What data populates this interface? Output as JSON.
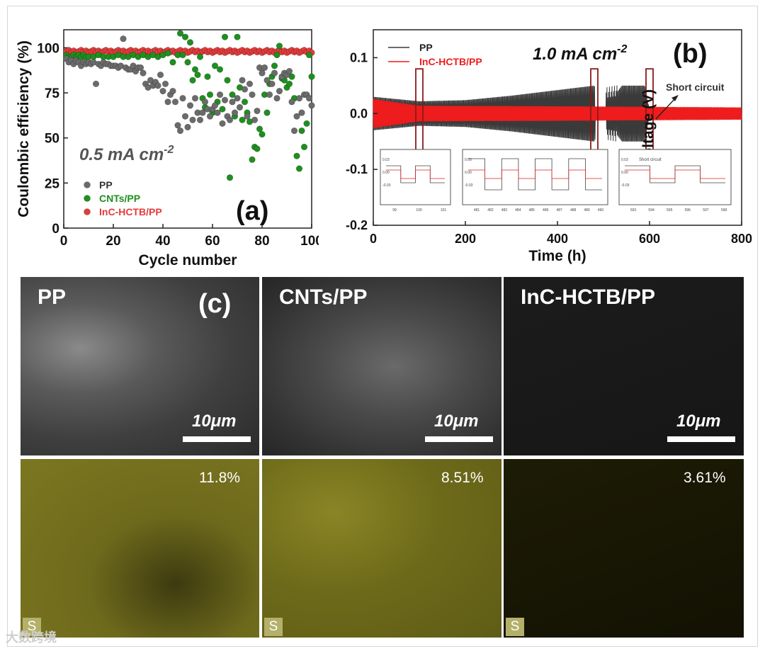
{
  "chart_data": [
    {
      "type": "scatter",
      "panel_label": "(a)",
      "annotation": "0.5 mA cm",
      "annotation_sup": "-2",
      "xlabel": "Cycle number",
      "ylabel": "Coulombic efficiency (%)",
      "xlim": [
        0,
        100
      ],
      "ylim": [
        0,
        110
      ],
      "xticks": [
        "0",
        "20",
        "40",
        "60",
        "80",
        "100"
      ],
      "yticks": [
        "0",
        "25",
        "50",
        "75",
        "100"
      ],
      "legend_position": "bottom-left",
      "series": [
        {
          "name": "PP",
          "color": "#6b6b6b",
          "points": [
            [
              1,
              94
            ],
            [
              2,
              92
            ],
            [
              3,
              93
            ],
            [
              4,
              91
            ],
            [
              5,
              93
            ],
            [
              6,
              92
            ],
            [
              7,
              90
            ],
            [
              8,
              92
            ],
            [
              9,
              91
            ],
            [
              10,
              92
            ],
            [
              11,
              91
            ],
            [
              12,
              92
            ],
            [
              13,
              80
            ],
            [
              14,
              91
            ],
            [
              15,
              90
            ],
            [
              16,
              92
            ],
            [
              17,
              91
            ],
            [
              18,
              91
            ],
            [
              19,
              90
            ],
            [
              20,
              90
            ],
            [
              21,
              90
            ],
            [
              22,
              89
            ],
            [
              23,
              90
            ],
            [
              24,
              105
            ],
            [
              25,
              89
            ],
            [
              26,
              88
            ],
            [
              27,
              88
            ],
            [
              28,
              90
            ],
            [
              29,
              87
            ],
            [
              30,
              89
            ],
            [
              31,
              89
            ],
            [
              32,
              86
            ],
            [
              33,
              80
            ],
            [
              34,
              78
            ],
            [
              35,
              82
            ],
            [
              36,
              79
            ],
            [
              37,
              81
            ],
            [
              38,
              79
            ],
            [
              39,
              85
            ],
            [
              40,
              76
            ],
            [
              41,
              80
            ],
            [
              42,
              70
            ],
            [
              43,
              74
            ],
            [
              44,
              76
            ],
            [
              45,
              70
            ],
            [
              46,
              57
            ],
            [
              47,
              54
            ],
            [
              48,
              72
            ],
            [
              49,
              62
            ],
            [
              50,
              56
            ],
            [
              51,
              68
            ],
            [
              52,
              60
            ],
            [
              53,
              72
            ],
            [
              54,
              64
            ],
            [
              55,
              60
            ],
            [
              56,
              64
            ],
            [
              57,
              70
            ],
            [
              58,
              66
            ],
            [
              59,
              62
            ],
            [
              60,
              66
            ],
            [
              61,
              68
            ],
            [
              62,
              64
            ],
            [
              63,
              74
            ],
            [
              64,
              58
            ],
            [
              65,
              71
            ],
            [
              66,
              62
            ],
            [
              67,
              60
            ],
            [
              68,
              70
            ],
            [
              69,
              64
            ],
            [
              70,
              72
            ],
            [
              71,
              67
            ],
            [
              72,
              82
            ],
            [
              73,
              77
            ],
            [
              74,
              62
            ],
            [
              75,
              80
            ],
            [
              76,
              74
            ],
            [
              77,
              60
            ],
            [
              78,
              65
            ],
            [
              79,
              89
            ],
            [
              80,
              86
            ],
            [
              81,
              89
            ],
            [
              82,
              82
            ],
            [
              83,
              74
            ],
            [
              84,
              80
            ],
            [
              85,
              86
            ],
            [
              86,
              72
            ],
            [
              87,
              76
            ],
            [
              88,
              84
            ],
            [
              89,
              86
            ],
            [
              90,
              85
            ],
            [
              91,
              87
            ],
            [
              92,
              70
            ],
            [
              93,
              54
            ],
            [
              94,
              62
            ],
            [
              95,
              72
            ],
            [
              96,
              64
            ],
            [
              97,
              74
            ],
            [
              98,
              74
            ],
            [
              99,
              72
            ],
            [
              100,
              68
            ]
          ]
        },
        {
          "name": "CNTs/PP",
          "color": "#1f8f1f",
          "points": [
            [
              1,
              96
            ],
            [
              2,
              95
            ],
            [
              3,
              95
            ],
            [
              4,
              96
            ],
            [
              5,
              95
            ],
            [
              6,
              96
            ],
            [
              7,
              95
            ],
            [
              8,
              96
            ],
            [
              9,
              95
            ],
            [
              10,
              95
            ],
            [
              12,
              95
            ],
            [
              14,
              96
            ],
            [
              16,
              95
            ],
            [
              18,
              95
            ],
            [
              20,
              95
            ],
            [
              22,
              96
            ],
            [
              24,
              95
            ],
            [
              26,
              95
            ],
            [
              28,
              96
            ],
            [
              30,
              95
            ],
            [
              32,
              96
            ],
            [
              34,
              95
            ],
            [
              36,
              96
            ],
            [
              38,
              95
            ],
            [
              40,
              96
            ],
            [
              42,
              97
            ],
            [
              44,
              92
            ],
            [
              46,
              96
            ],
            [
              47,
              108
            ],
            [
              48,
              96
            ],
            [
              49,
              106
            ],
            [
              50,
              92
            ],
            [
              51,
              103
            ],
            [
              52,
              82
            ],
            [
              53,
              88
            ],
            [
              54,
              85
            ],
            [
              55,
              95
            ],
            [
              56,
              72
            ],
            [
              57,
              67
            ],
            [
              58,
              84
            ],
            [
              59,
              74
            ],
            [
              60,
              64
            ],
            [
              61,
              90
            ],
            [
              62,
              70
            ],
            [
              63,
              88
            ],
            [
              64,
              66
            ],
            [
              65,
              106
            ],
            [
              66,
              82
            ],
            [
              67,
              28
            ],
            [
              68,
              74
            ],
            [
              69,
              62
            ],
            [
              70,
              106
            ],
            [
              71,
              78
            ],
            [
              72,
              60
            ],
            [
              73,
              70
            ],
            [
              74,
              64
            ],
            [
              75,
              59
            ],
            [
              76,
              38
            ],
            [
              77,
              45
            ],
            [
              78,
              44
            ],
            [
              79,
              55
            ],
            [
              80,
              52
            ],
            [
              81,
              74
            ],
            [
              82,
              64
            ],
            [
              83,
              80
            ],
            [
              84,
              84
            ],
            [
              85,
              90
            ],
            [
              86,
              96
            ],
            [
              87,
              101
            ],
            [
              88,
              83
            ],
            [
              89,
              82
            ],
            [
              90,
              78
            ],
            [
              91,
              80
            ],
            [
              92,
              84
            ],
            [
              93,
              72
            ],
            [
              94,
              40
            ],
            [
              95,
              33
            ],
            [
              96,
              54
            ],
            [
              97,
              45
            ],
            [
              98,
              58
            ],
            [
              99,
              96
            ],
            [
              100,
              84
            ]
          ]
        },
        {
          "name": "InC-HCTB/PP",
          "color": "#e23b3b",
          "points": "≈98 % for all cycles 1–100"
        }
      ]
    },
    {
      "type": "line",
      "panel_label": "(b)",
      "annotation": "1.0 mA cm",
      "annotation_sup": "-2",
      "xlabel": "Time (h)",
      "ylabel": "Voltage (V)",
      "xlim": [
        0,
        800
      ],
      "ylim": [
        -0.2,
        0.15
      ],
      "xticks": [
        "0",
        "200",
        "400",
        "600",
        "800"
      ],
      "yticks": [
        "-0.2",
        "-0.1",
        "0.0",
        "0.1"
      ],
      "short_circuit_label": "Short circuit",
      "legend_position": "top-left",
      "series": [
        {
          "name": "PP",
          "color": "#3a3a3a",
          "envelope": [
            [
              0,
              0.03
            ],
            [
              100,
              0.022
            ],
            [
              200,
              0.024
            ],
            [
              300,
              0.032
            ],
            [
              400,
              0.042
            ],
            [
              480,
              0.05
            ],
            [
              500,
              0.006
            ],
            [
              540,
              0.05
            ],
            [
              590,
              0.05
            ],
            [
              600,
              0.006
            ],
            [
              800,
              0.006
            ]
          ],
          "end_h": 600
        },
        {
          "name": "InC-HCTB/PP",
          "color": "#ee1c1c",
          "envelope": [
            [
              0,
              0.026
            ],
            [
              100,
              0.014
            ],
            [
              400,
              0.013
            ],
            [
              800,
              0.011
            ]
          ],
          "end_h": 800
        }
      ],
      "insets": [
        {
          "xticks": [
            "99",
            "100",
            "101"
          ],
          "yticks": [
            "0.03",
            "0.00",
            "-0.03"
          ],
          "label": ""
        },
        {
          "xticks": [
            "481",
            "482",
            "483",
            "484",
            "485",
            "486",
            "487",
            "488",
            "489",
            "490"
          ],
          "yticks": [
            "0.03",
            "0.00",
            "-0.03"
          ],
          "label": ""
        },
        {
          "xticks": [
            "593",
            "594",
            "595",
            "596",
            "597",
            "598"
          ],
          "yticks": [
            "0.03",
            "0.00",
            "-0.03"
          ],
          "label": "Short circuit"
        }
      ]
    }
  ],
  "panel_c": {
    "letter": "(c)",
    "columns": [
      {
        "label": "PP",
        "scale": "10μm",
        "percent": "11.8%",
        "element": "S"
      },
      {
        "label": "CNTs/PP",
        "scale": "10μm",
        "percent": "8.51%",
        "element": "S"
      },
      {
        "label": "InC-HCTB/PP",
        "scale": "10μm",
        "percent": "3.61%",
        "element": "S"
      }
    ]
  },
  "watermark": "大数跨境"
}
